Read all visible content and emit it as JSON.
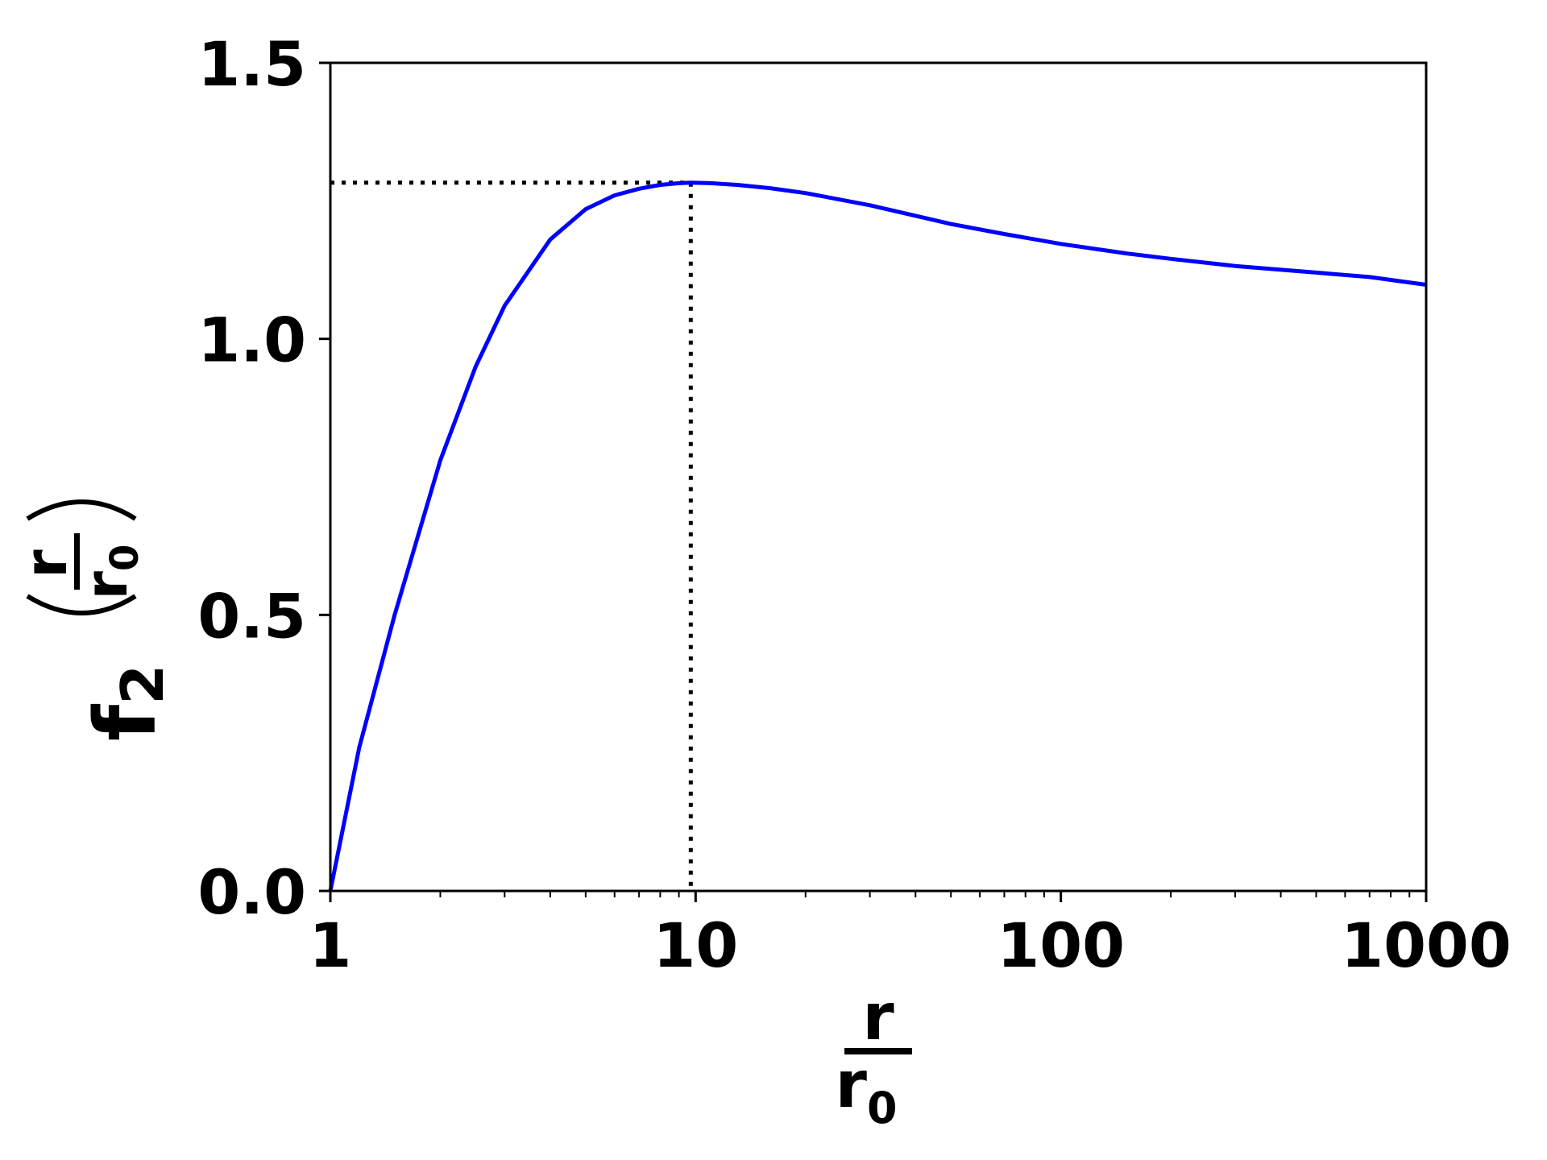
{
  "chart_data": {
    "type": "line",
    "xscale": "log",
    "xlim": [
      1,
      1000
    ],
    "ylim": [
      0,
      1.5
    ],
    "x_ticks": [
      1,
      10,
      100,
      1000
    ],
    "x_tick_labels": [
      "1",
      "10",
      "100",
      "1000"
    ],
    "y_ticks": [
      0,
      0.5,
      1,
      1.5
    ],
    "y_tick_labels": [
      "0.0",
      "0.5",
      "1.0",
      "1.5"
    ],
    "xlabel": {
      "numerator": "r",
      "denominator": "r",
      "denominator_sub": "0"
    },
    "ylabel": {
      "func": "f",
      "func_sub": "2",
      "numerator": "r",
      "denominator": "r",
      "denominator_sub": "0"
    },
    "grid": false,
    "series": [
      {
        "color": "#0000ff",
        "x": [
          1,
          1.2,
          1.5,
          2,
          2.5,
          3,
          4,
          5,
          6,
          7,
          8,
          9,
          9.7,
          11,
          13,
          16,
          20,
          30,
          50,
          70,
          100,
          150,
          200,
          300,
          500,
          700,
          1000
        ],
        "y": [
          0.0,
          0.26,
          0.5,
          0.78,
          0.95,
          1.06,
          1.18,
          1.235,
          1.26,
          1.272,
          1.279,
          1.282,
          1.283,
          1.282,
          1.279,
          1.273,
          1.264,
          1.242,
          1.208,
          1.19,
          1.172,
          1.155,
          1.145,
          1.132,
          1.12,
          1.112,
          1.098
        ]
      }
    ],
    "reference_lines": [
      {
        "style": "dotted",
        "color": "#000000",
        "x_max": 9.7,
        "y_max": 1.283
      }
    ]
  }
}
